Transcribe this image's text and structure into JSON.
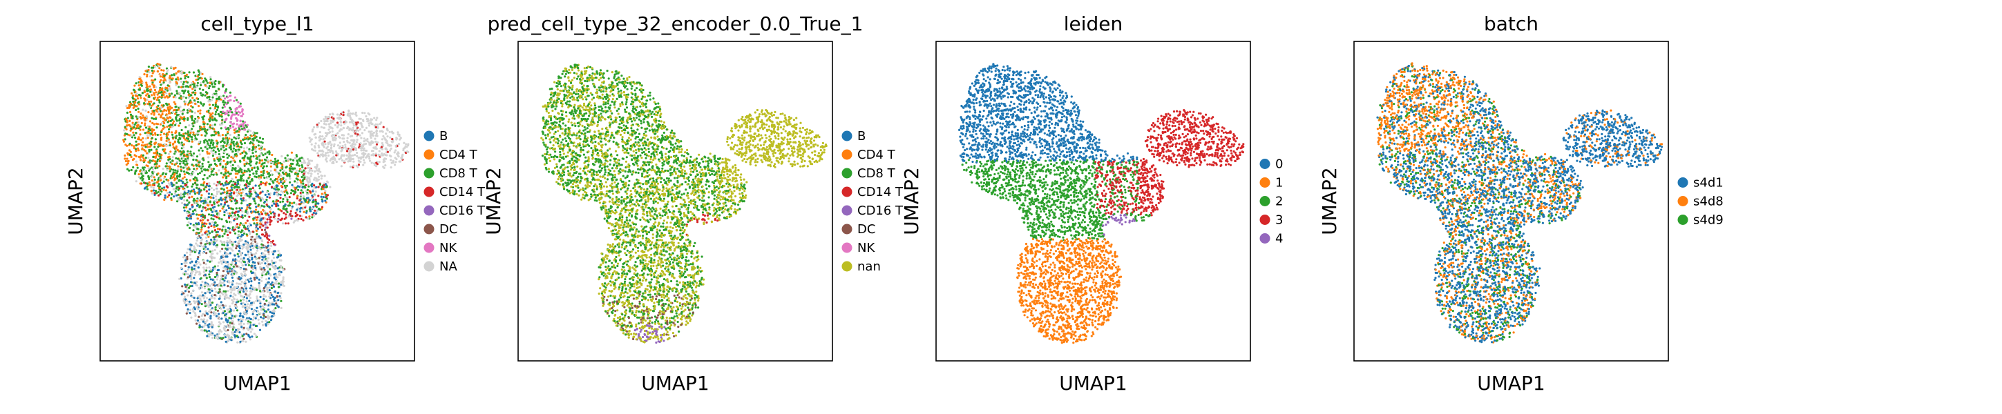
{
  "chart_data": [
    {
      "type": "scatter",
      "title": "cell_type_l1",
      "xlabel": "UMAP1",
      "ylabel": "UMAP2",
      "legend_position": "right",
      "ticks": false,
      "grid": false,
      "series": [
        {
          "name": "B",
          "color": "#1f77b4"
        },
        {
          "name": "CD4 T",
          "color": "#ff7f0e"
        },
        {
          "name": "CD8 T",
          "color": "#2ca02c"
        },
        {
          "name": "CD14 T",
          "color": "#d62728"
        },
        {
          "name": "CD16 T",
          "color": "#9467bd"
        },
        {
          "name": "DC",
          "color": "#8c564b"
        },
        {
          "name": "NK",
          "color": "#e377c2"
        },
        {
          "name": "NA",
          "color": "#d3d3d3"
        }
      ]
    },
    {
      "type": "scatter",
      "title": "pred_cell_type_32_encoder_0.0_True_1",
      "xlabel": "UMAP1",
      "ylabel": "UMAP2",
      "legend_position": "right",
      "ticks": false,
      "grid": false,
      "series": [
        {
          "name": "B",
          "color": "#1f77b4"
        },
        {
          "name": "CD4 T",
          "color": "#ff7f0e"
        },
        {
          "name": "CD8 T",
          "color": "#2ca02c"
        },
        {
          "name": "CD14 T",
          "color": "#d62728"
        },
        {
          "name": "CD16 T",
          "color": "#9467bd"
        },
        {
          "name": "DC",
          "color": "#8c564b"
        },
        {
          "name": "NK",
          "color": "#e377c2"
        },
        {
          "name": "nan",
          "color": "#bcbd22"
        }
      ]
    },
    {
      "type": "scatter",
      "title": "leiden",
      "xlabel": "UMAP1",
      "ylabel": "UMAP2",
      "legend_position": "right",
      "ticks": false,
      "grid": false,
      "series": [
        {
          "name": "0",
          "color": "#1f77b4"
        },
        {
          "name": "1",
          "color": "#ff7f0e"
        },
        {
          "name": "2",
          "color": "#2ca02c"
        },
        {
          "name": "3",
          "color": "#d62728"
        },
        {
          "name": "4",
          "color": "#9467bd"
        }
      ]
    },
    {
      "type": "scatter",
      "title": "batch",
      "xlabel": "UMAP1",
      "ylabel": "UMAP2",
      "legend_position": "right",
      "ticks": false,
      "grid": false,
      "series": [
        {
          "name": "s4d1",
          "color": "#1f77b4"
        },
        {
          "name": "s4d8",
          "color": "#ff7f0e"
        },
        {
          "name": "s4d9",
          "color": "#2ca02c"
        }
      ]
    }
  ]
}
